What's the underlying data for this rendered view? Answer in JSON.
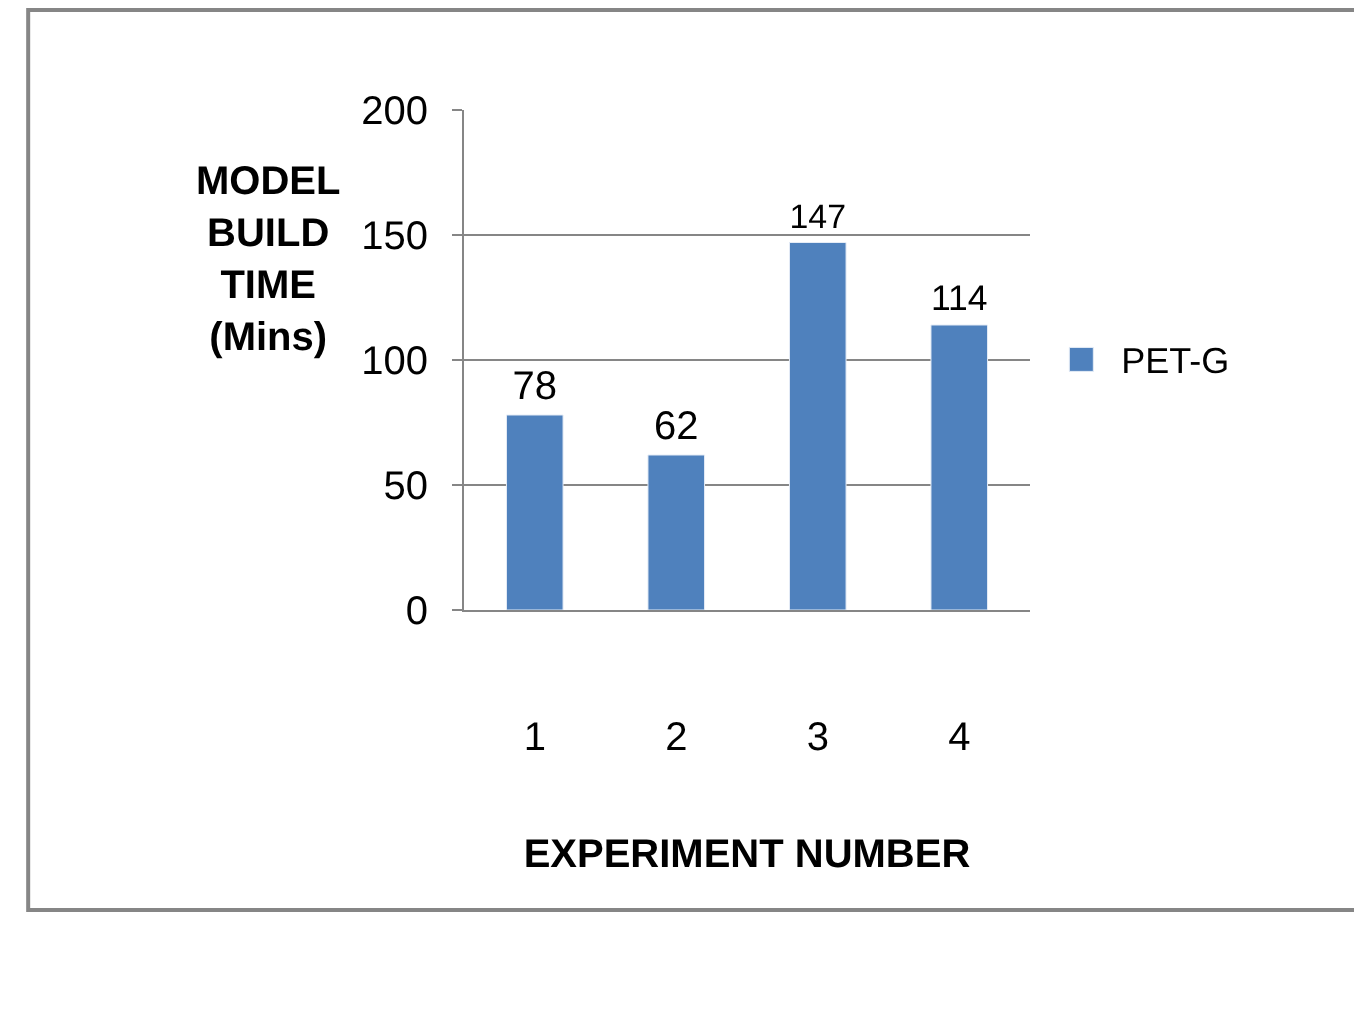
{
  "chart_data": {
    "type": "bar",
    "categories": [
      "1",
      "2",
      "3",
      "4"
    ],
    "series": [
      {
        "name": "PET-G",
        "color": "#4f81bd",
        "values": [
          78,
          62,
          147,
          114
        ]
      }
    ],
    "xlabel": "EXPERIMENT NUMBER",
    "ylabel": "MODEL BUILD TIME (Mins)",
    "ylim": [
      0,
      200
    ],
    "yticks": [
      0,
      50,
      100,
      150,
      200
    ],
    "grid": "y",
    "legend": "right",
    "data_labels": true
  }
}
